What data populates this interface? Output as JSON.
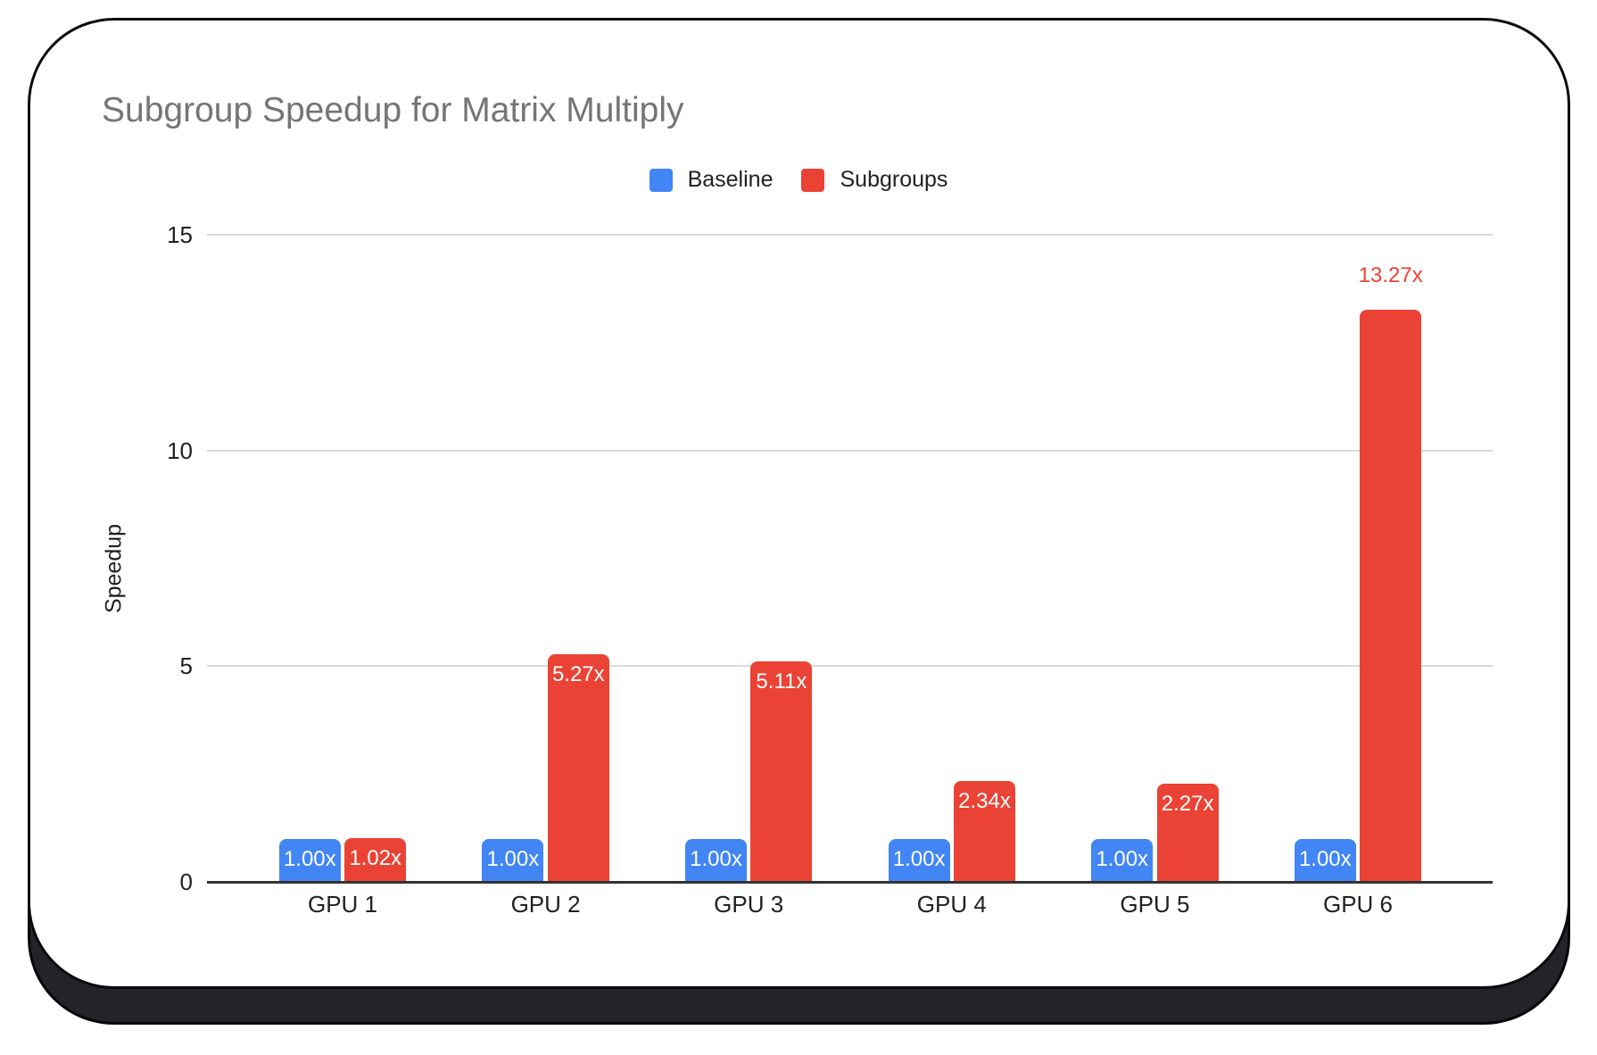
{
  "chart_data": {
    "type": "bar",
    "title": "Subgroup Speedup for Matrix Multiply",
    "ylabel": "Speedup",
    "categories": [
      "GPU 1",
      "GPU 2",
      "GPU 3",
      "GPU 4",
      "GPU 5",
      "GPU 6"
    ],
    "series": [
      {
        "name": "Baseline",
        "color": "#4285F4",
        "values": [
          1.0,
          1.0,
          1.0,
          1.0,
          1.0,
          1.0
        ],
        "labels": [
          "1.00x",
          "1.00x",
          "1.00x",
          "1.00x",
          "1.00x",
          "1.00x"
        ]
      },
      {
        "name": "Subgroups",
        "color": "#EA4335",
        "values": [
          1.02,
          5.27,
          5.11,
          2.34,
          2.27,
          13.27
        ],
        "labels": [
          "1.02x",
          "5.27x",
          "5.11x",
          "2.34x",
          "2.27x",
          "13.27x"
        ]
      }
    ],
    "yticks": [
      0,
      5,
      10,
      15
    ],
    "ylim": [
      0,
      15
    ],
    "grid": true,
    "legend_position": "top",
    "colors": {
      "title_text": "#757575",
      "axis_text": "#212121",
      "label_text_inside": "#ffffff",
      "gridline": "#d9d9d9",
      "axis_line": "#333333",
      "card_background": "#ffffff",
      "card_border": "#0b0b0d",
      "card_shadow": "#23232a"
    }
  }
}
